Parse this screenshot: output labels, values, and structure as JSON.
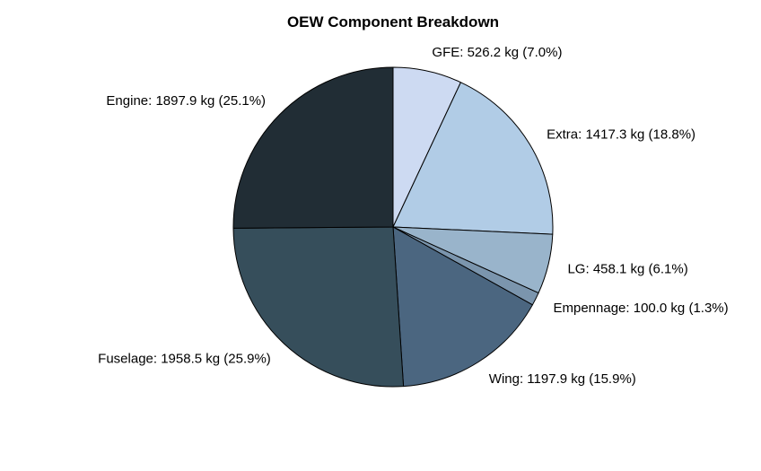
{
  "chart_data": {
    "type": "pie",
    "title": "OEW Component Breakdown",
    "unit": "kg",
    "start_angle_deg": 90,
    "direction": "clockwise",
    "slices": [
      {
        "name": "GFE",
        "value": 526.2,
        "percent": 7.0,
        "label": "GFE: 526.2 kg (7.0%)",
        "color": "#cddaf2"
      },
      {
        "name": "Extra",
        "value": 1417.3,
        "percent": 18.8,
        "label": "Extra: 1417.3 kg (18.8%)",
        "color": "#b1cce6"
      },
      {
        "name": "LG",
        "value": 458.1,
        "percent": 6.1,
        "label": "LG: 458.1 kg (6.1%)",
        "color": "#99b4cb"
      },
      {
        "name": "Empennage",
        "value": 100.0,
        "percent": 1.3,
        "label": "Empennage: 100.0 kg (1.3%)",
        "color": "#7b95ad"
      },
      {
        "name": "Wing",
        "value": 1197.9,
        "percent": 15.9,
        "label": "Wing: 1197.9 kg (15.9%)",
        "color": "#4b6680"
      },
      {
        "name": "Fuselage",
        "value": 1958.5,
        "percent": 25.9,
        "label": "Fuselage: 1958.5 kg (25.9%)",
        "color": "#364e5b"
      },
      {
        "name": "Engine",
        "value": 1897.9,
        "percent": 25.1,
        "label": "Engine: 1897.9 kg (25.1%)",
        "color": "#212d35"
      }
    ]
  }
}
